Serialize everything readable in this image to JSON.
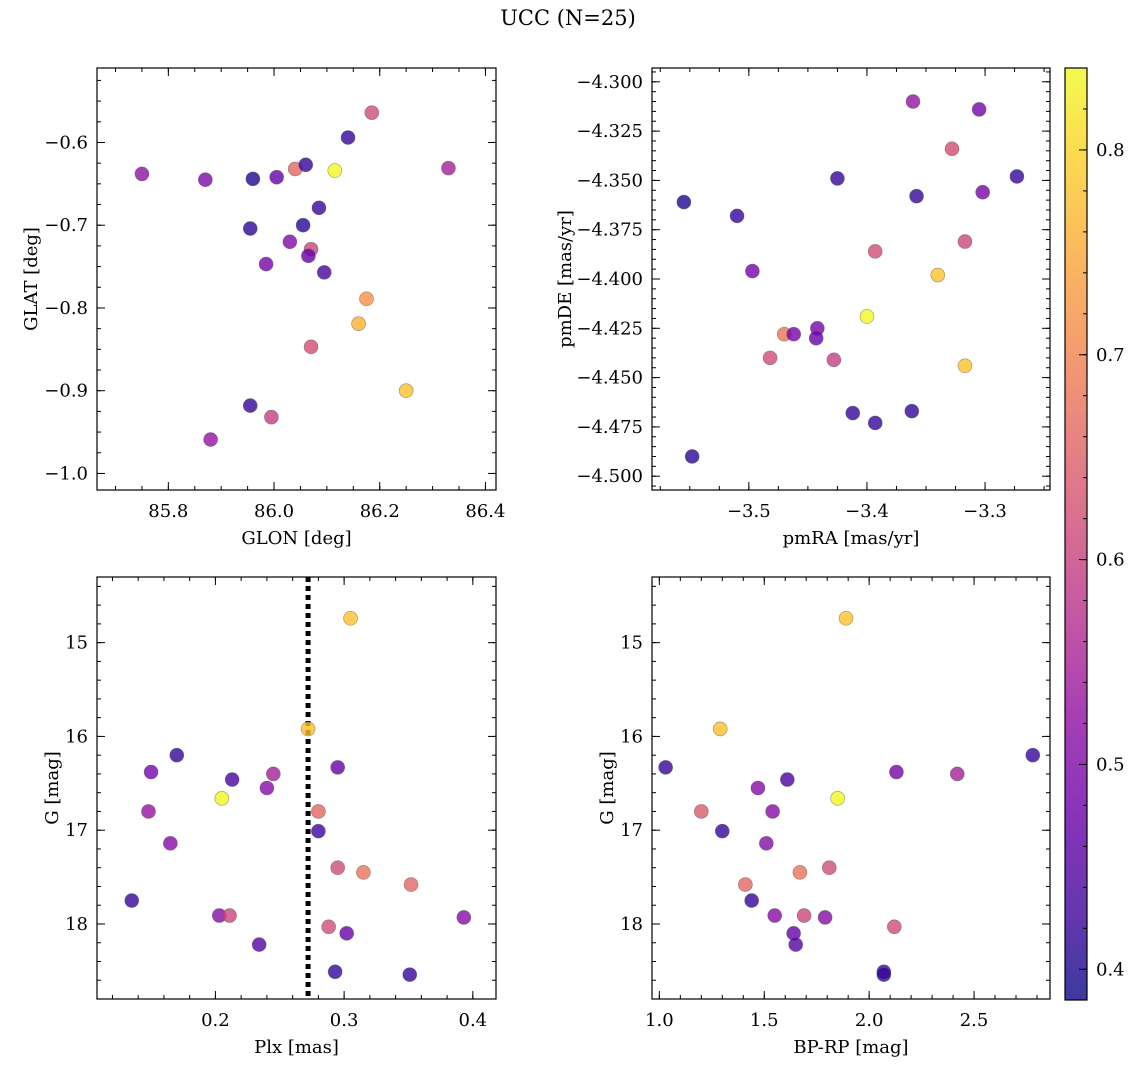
{
  "figure": {
    "title": "UCC (N=25)"
  },
  "colormap": {
    "name": "plasma",
    "stops": [
      "#0d0887",
      "#41049d",
      "#6a00a8",
      "#8f0da4",
      "#b12a90",
      "#cc4778",
      "#e16462",
      "#f2844b",
      "#fca636",
      "#fcce25",
      "#f0f921"
    ],
    "alpha": 0.8,
    "min": 0.385,
    "max": 0.84,
    "ticks": [
      0.4,
      0.5,
      0.6,
      0.7,
      0.8
    ],
    "tick_labels": [
      "0.4",
      "0.5",
      "0.6",
      "0.7",
      "0.8"
    ]
  },
  "chart_data": [
    {
      "type": "scatter",
      "id": "lonlat",
      "title": "",
      "xlabel": "GLON [deg]",
      "ylabel": "GLAT [deg]",
      "xlim": [
        85.665,
        86.42
      ],
      "ylim": [
        -1.02,
        -0.51
      ],
      "y_inverted": false,
      "xticks": [
        85.8,
        86.0,
        86.2,
        86.4
      ],
      "xtick_labels": [
        "85.8",
        "86.0",
        "86.2",
        "86.4"
      ],
      "yticks": [
        -1.0,
        -0.9,
        -0.8,
        -0.7,
        -0.6
      ],
      "ytick_labels": [
        "−1.0",
        "−0.9",
        "−0.8",
        "−0.7",
        "−0.6"
      ],
      "x_minor": 0.05,
      "y_minor": 0.025,
      "points": [
        {
          "x": 85.75,
          "y": -0.638,
          "c": 0.52
        },
        {
          "x": 85.87,
          "y": -0.645,
          "c": 0.5
        },
        {
          "x": 85.96,
          "y": -0.644,
          "c": 0.4
        },
        {
          "x": 86.005,
          "y": -0.642,
          "c": 0.47
        },
        {
          "x": 86.04,
          "y": -0.632,
          "c": 0.66
        },
        {
          "x": 86.06,
          "y": -0.627,
          "c": 0.42
        },
        {
          "x": 86.115,
          "y": -0.634,
          "c": 0.84
        },
        {
          "x": 86.14,
          "y": -0.594,
          "c": 0.42
        },
        {
          "x": 86.185,
          "y": -0.564,
          "c": 0.62
        },
        {
          "x": 86.33,
          "y": -0.631,
          "c": 0.55
        },
        {
          "x": 86.085,
          "y": -0.679,
          "c": 0.42
        },
        {
          "x": 86.055,
          "y": -0.7,
          "c": 0.41
        },
        {
          "x": 85.955,
          "y": -0.704,
          "c": 0.41
        },
        {
          "x": 86.03,
          "y": -0.72,
          "c": 0.5
        },
        {
          "x": 86.07,
          "y": -0.729,
          "c": 0.61
        },
        {
          "x": 86.065,
          "y": -0.737,
          "c": 0.47
        },
        {
          "x": 85.985,
          "y": -0.747,
          "c": 0.49
        },
        {
          "x": 86.095,
          "y": -0.757,
          "c": 0.44
        },
        {
          "x": 86.175,
          "y": -0.789,
          "c": 0.72
        },
        {
          "x": 86.16,
          "y": -0.819,
          "c": 0.76
        },
        {
          "x": 86.07,
          "y": -0.847,
          "c": 0.62
        },
        {
          "x": 86.25,
          "y": -0.9,
          "c": 0.78
        },
        {
          "x": 85.955,
          "y": -0.918,
          "c": 0.42
        },
        {
          "x": 85.995,
          "y": -0.932,
          "c": 0.6
        },
        {
          "x": 85.88,
          "y": -0.959,
          "c": 0.53
        }
      ]
    },
    {
      "type": "scatter",
      "id": "pm",
      "title": "",
      "xlabel": "pmRA [mas/yr]",
      "ylabel": "pmDE [mas/yr]",
      "xlim": [
        -3.582,
        -3.245
      ],
      "ylim": [
        -4.507,
        -4.293
      ],
      "y_inverted": false,
      "xticks": [
        -3.5,
        -3.4,
        -3.3
      ],
      "xtick_labels": [
        "−3.5",
        "−3.4",
        "−3.3"
      ],
      "yticks": [
        -4.5,
        -4.475,
        -4.45,
        -4.425,
        -4.4,
        -4.375,
        -4.35,
        -4.325,
        -4.3
      ],
      "ytick_labels": [
        "−4.500",
        "−4.475",
        "−4.450",
        "−4.425",
        "−4.400",
        "−4.375",
        "−4.350",
        "−4.325",
        "−4.300"
      ],
      "x_minor": 0.025,
      "y_minor": 0.005,
      "points": [
        {
          "x": -3.555,
          "y": -4.361,
          "c": 0.4
        },
        {
          "x": -3.51,
          "y": -4.368,
          "c": 0.42
        },
        {
          "x": -3.497,
          "y": -4.396,
          "c": 0.49
        },
        {
          "x": -3.548,
          "y": -4.49,
          "c": 0.41
        },
        {
          "x": -3.482,
          "y": -4.44,
          "c": 0.62
        },
        {
          "x": -3.47,
          "y": -4.428,
          "c": 0.68
        },
        {
          "x": -3.462,
          "y": -4.428,
          "c": 0.49
        },
        {
          "x": -3.442,
          "y": -4.425,
          "c": 0.49
        },
        {
          "x": -3.443,
          "y": -4.43,
          "c": 0.47
        },
        {
          "x": -3.428,
          "y": -4.441,
          "c": 0.6
        },
        {
          "x": -3.4,
          "y": -4.419,
          "c": 0.84
        },
        {
          "x": -3.425,
          "y": -4.349,
          "c": 0.42
        },
        {
          "x": -3.393,
          "y": -4.386,
          "c": 0.62
        },
        {
          "x": -3.412,
          "y": -4.468,
          "c": 0.42
        },
        {
          "x": -3.393,
          "y": -4.473,
          "c": 0.42
        },
        {
          "x": -3.361,
          "y": -4.31,
          "c": 0.53
        },
        {
          "x": -3.358,
          "y": -4.358,
          "c": 0.42
        },
        {
          "x": -3.362,
          "y": -4.467,
          "c": 0.42
        },
        {
          "x": -3.34,
          "y": -4.398,
          "c": 0.78
        },
        {
          "x": -3.328,
          "y": -4.334,
          "c": 0.62
        },
        {
          "x": -3.317,
          "y": -4.381,
          "c": 0.61
        },
        {
          "x": -3.317,
          "y": -4.444,
          "c": 0.78
        },
        {
          "x": -3.305,
          "y": -4.314,
          "c": 0.49
        },
        {
          "x": -3.302,
          "y": -4.356,
          "c": 0.49
        },
        {
          "x": -3.273,
          "y": -4.348,
          "c": 0.42
        }
      ]
    },
    {
      "type": "scatter",
      "id": "plx",
      "title": "",
      "xlabel": "Plx [mas]",
      "ylabel": "G [mag]",
      "xlim": [
        0.108,
        0.418
      ],
      "ylim": [
        14.3,
        18.8
      ],
      "y_inverted": true,
      "xticks": [
        0.2,
        0.3,
        0.4
      ],
      "xtick_labels": [
        "0.2",
        "0.3",
        "0.4"
      ],
      "yticks": [
        15,
        16,
        17,
        18
      ],
      "ytick_labels": [
        "15",
        "16",
        "17",
        "18"
      ],
      "x_minor": 0.02,
      "y_minor": 0.2,
      "vline": {
        "x": 0.272,
        "style": "dotted",
        "color": "#000000"
      },
      "points": [
        {
          "x": 0.305,
          "y": 14.74,
          "c": 0.78
        },
        {
          "x": 0.272,
          "y": 15.92,
          "c": 0.78
        },
        {
          "x": 0.17,
          "y": 16.2,
          "c": 0.42
        },
        {
          "x": 0.295,
          "y": 16.33,
          "c": 0.47
        },
        {
          "x": 0.15,
          "y": 16.38,
          "c": 0.49
        },
        {
          "x": 0.245,
          "y": 16.4,
          "c": 0.55
        },
        {
          "x": 0.213,
          "y": 16.46,
          "c": 0.44
        },
        {
          "x": 0.24,
          "y": 16.55,
          "c": 0.51
        },
        {
          "x": 0.205,
          "y": 16.66,
          "c": 0.84
        },
        {
          "x": 0.148,
          "y": 16.8,
          "c": 0.53
        },
        {
          "x": 0.28,
          "y": 16.8,
          "c": 0.66
        },
        {
          "x": 0.28,
          "y": 17.01,
          "c": 0.43
        },
        {
          "x": 0.165,
          "y": 17.14,
          "c": 0.51
        },
        {
          "x": 0.295,
          "y": 17.4,
          "c": 0.62
        },
        {
          "x": 0.315,
          "y": 17.45,
          "c": 0.68
        },
        {
          "x": 0.352,
          "y": 17.58,
          "c": 0.66
        },
        {
          "x": 0.135,
          "y": 17.75,
          "c": 0.42
        },
        {
          "x": 0.203,
          "y": 17.91,
          "c": 0.51
        },
        {
          "x": 0.211,
          "y": 17.91,
          "c": 0.61
        },
        {
          "x": 0.393,
          "y": 17.93,
          "c": 0.51
        },
        {
          "x": 0.288,
          "y": 18.03,
          "c": 0.62
        },
        {
          "x": 0.302,
          "y": 18.1,
          "c": 0.47
        },
        {
          "x": 0.234,
          "y": 18.22,
          "c": 0.45
        },
        {
          "x": 0.293,
          "y": 18.51,
          "c": 0.42
        },
        {
          "x": 0.351,
          "y": 18.54,
          "c": 0.42
        }
      ]
    },
    {
      "type": "scatter",
      "id": "cmd",
      "title": "",
      "xlabel": "BP-RP [mag]",
      "ylabel": "G [mag]",
      "xlim": [
        0.965,
        2.862
      ],
      "ylim": [
        14.3,
        18.8
      ],
      "y_inverted": true,
      "xticks": [
        1.0,
        1.5,
        2.0,
        2.5
      ],
      "xtick_labels": [
        "1.0",
        "1.5",
        "2.0",
        "2.5"
      ],
      "yticks": [
        15,
        16,
        17,
        18
      ],
      "ytick_labels": [
        "15",
        "16",
        "17",
        "18"
      ],
      "x_minor": 0.1,
      "y_minor": 0.2,
      "points": [
        {
          "x": 1.89,
          "y": 14.74,
          "c": 0.78
        },
        {
          "x": 1.29,
          "y": 15.92,
          "c": 0.78
        },
        {
          "x": 2.78,
          "y": 16.2,
          "c": 0.42
        },
        {
          "x": 1.03,
          "y": 16.33,
          "c": 0.42
        },
        {
          "x": 2.13,
          "y": 16.38,
          "c": 0.49
        },
        {
          "x": 2.42,
          "y": 16.4,
          "c": 0.55
        },
        {
          "x": 1.61,
          "y": 16.46,
          "c": 0.44
        },
        {
          "x": 1.47,
          "y": 16.55,
          "c": 0.51
        },
        {
          "x": 1.85,
          "y": 16.66,
          "c": 0.84
        },
        {
          "x": 1.2,
          "y": 16.8,
          "c": 0.64
        },
        {
          "x": 1.54,
          "y": 16.8,
          "c": 0.51
        },
        {
          "x": 1.3,
          "y": 17.01,
          "c": 0.42
        },
        {
          "x": 1.51,
          "y": 17.14,
          "c": 0.51
        },
        {
          "x": 1.81,
          "y": 17.4,
          "c": 0.62
        },
        {
          "x": 1.67,
          "y": 17.45,
          "c": 0.68
        },
        {
          "x": 1.41,
          "y": 17.58,
          "c": 0.66
        },
        {
          "x": 1.44,
          "y": 17.75,
          "c": 0.42
        },
        {
          "x": 1.55,
          "y": 17.91,
          "c": 0.51
        },
        {
          "x": 1.69,
          "y": 17.91,
          "c": 0.61
        },
        {
          "x": 1.79,
          "y": 17.93,
          "c": 0.51
        },
        {
          "x": 2.12,
          "y": 18.03,
          "c": 0.62
        },
        {
          "x": 1.64,
          "y": 18.1,
          "c": 0.47
        },
        {
          "x": 1.65,
          "y": 18.22,
          "c": 0.45
        },
        {
          "x": 2.07,
          "y": 18.51,
          "c": 0.42
        },
        {
          "x": 2.07,
          "y": 18.54,
          "c": 0.42
        }
      ]
    }
  ]
}
